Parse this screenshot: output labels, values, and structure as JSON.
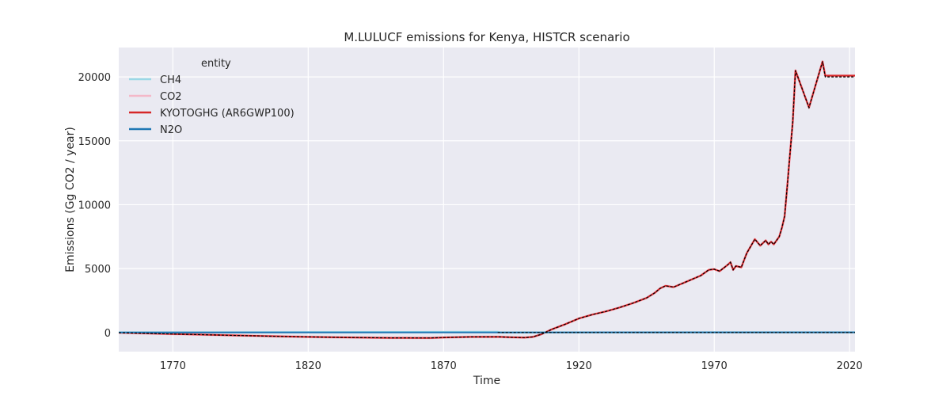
{
  "chart_data": {
    "type": "line",
    "title": "M.LULUCF emissions for Kenya, HISTCR scenario",
    "xlabel": "Time",
    "ylabel": "Emissions (Gg CO2 / year)",
    "xlim": [
      1750,
      2022
    ],
    "ylim": [
      -1500,
      22300
    ],
    "xticks": [
      1770,
      1820,
      1870,
      1920,
      1970,
      2020
    ],
    "yticks": [
      0,
      5000,
      10000,
      15000,
      20000
    ],
    "grid": true,
    "legend_title": "entity",
    "legend_position": "top-left",
    "series": [
      {
        "name": "CH4",
        "color": "#9ad8e6",
        "x": [
          1750,
          1890,
          1891,
          2022
        ],
        "y": [
          0,
          50,
          0,
          10
        ]
      },
      {
        "name": "CO2",
        "color": "#f4b8c8",
        "x": [
          1750,
          1770,
          1790,
          1810,
          1830,
          1850,
          1865,
          1870,
          1880,
          1890,
          1895,
          1900,
          1903,
          1906,
          1910,
          1915,
          1920,
          1925,
          1930,
          1935,
          1940,
          1945,
          1948,
          1950,
          1952,
          1955,
          1960,
          1965,
          1968,
          1970,
          1972,
          1975,
          1976,
          1977,
          1978,
          1980,
          1982,
          1985,
          1987,
          1989,
          1990,
          1991,
          1992,
          1994,
          1995,
          1996,
          1997,
          1998,
          1999,
          2000,
          2005,
          2010,
          2011,
          2022
        ],
        "y": [
          -20,
          -120,
          -220,
          -310,
          -380,
          -420,
          -430,
          -390,
          -350,
          -340,
          -380,
          -400,
          -350,
          -150,
          250,
          650,
          1100,
          1400,
          1650,
          1950,
          2300,
          2700,
          3100,
          3450,
          3650,
          3550,
          4000,
          4450,
          4900,
          4950,
          4800,
          5300,
          5500,
          4900,
          5200,
          5100,
          6200,
          7300,
          6800,
          7200,
          6900,
          7100,
          6900,
          7500,
          8200,
          9100,
          11500,
          14000,
          16500,
          20500,
          17600,
          21200,
          20100,
          20100
        ]
      },
      {
        "name": "KYOTOGHG (AR6GWP100)",
        "color": "#d62728",
        "x": [
          1750,
          1770,
          1790,
          1810,
          1830,
          1850,
          1865,
          1870,
          1880,
          1890,
          1895,
          1900,
          1903,
          1906,
          1910,
          1915,
          1920,
          1925,
          1930,
          1935,
          1940,
          1945,
          1948,
          1950,
          1952,
          1955,
          1960,
          1965,
          1968,
          1970,
          1972,
          1975,
          1976,
          1977,
          1978,
          1980,
          1982,
          1985,
          1987,
          1989,
          1990,
          1991,
          1992,
          1994,
          1995,
          1996,
          1997,
          1998,
          1999,
          2000,
          2005,
          2010,
          2011,
          2022
        ],
        "y": [
          -20,
          -120,
          -220,
          -310,
          -380,
          -420,
          -430,
          -390,
          -350,
          -340,
          -380,
          -400,
          -350,
          -150,
          250,
          650,
          1100,
          1400,
          1650,
          1950,
          2300,
          2700,
          3100,
          3450,
          3650,
          3550,
          4000,
          4450,
          4900,
          4950,
          4800,
          5300,
          5500,
          4900,
          5200,
          5100,
          6200,
          7300,
          6800,
          7200,
          6900,
          7100,
          6900,
          7500,
          8200,
          9100,
          11500,
          14000,
          16500,
          20500,
          17600,
          21200,
          20100,
          20100
        ]
      },
      {
        "name": "N2O",
        "color": "#1f77b4",
        "x": [
          1750,
          2022
        ],
        "y": [
          0,
          10
        ]
      }
    ],
    "total_line": {
      "style": "dashed",
      "color": "#000000",
      "x": [
        1750,
        1770,
        1790,
        1810,
        1830,
        1850,
        1865,
        1870,
        1880,
        1890,
        1895,
        1900,
        1903,
        1906,
        1910,
        1915,
        1920,
        1925,
        1930,
        1935,
        1940,
        1945,
        1948,
        1950,
        1952,
        1955,
        1960,
        1965,
        1968,
        1970,
        1972,
        1975,
        1976,
        1977,
        1978,
        1980,
        1982,
        1985,
        1987,
        1989,
        1990,
        1991,
        1992,
        1994,
        1995,
        1996,
        1997,
        1998,
        1999,
        2000,
        2005,
        2010,
        2011,
        2022
      ],
      "y": [
        -20,
        -120,
        -220,
        -310,
        -380,
        -420,
        -430,
        -390,
        -350,
        -340,
        -380,
        -400,
        -350,
        -150,
        250,
        650,
        1100,
        1400,
        1650,
        1950,
        2300,
        2700,
        3100,
        3450,
        3650,
        3550,
        4000,
        4450,
        4900,
        4950,
        4800,
        5300,
        5500,
        4900,
        5200,
        5100,
        6200,
        7300,
        6800,
        7200,
        6900,
        7100,
        6900,
        7500,
        8200,
        9100,
        11500,
        14000,
        16500,
        20500,
        17600,
        21200,
        20000,
        20000
      ]
    },
    "zero_dashed_line": {
      "color": "#000000",
      "x": [
        1890,
        2022
      ],
      "y": [
        0,
        0
      ]
    }
  }
}
